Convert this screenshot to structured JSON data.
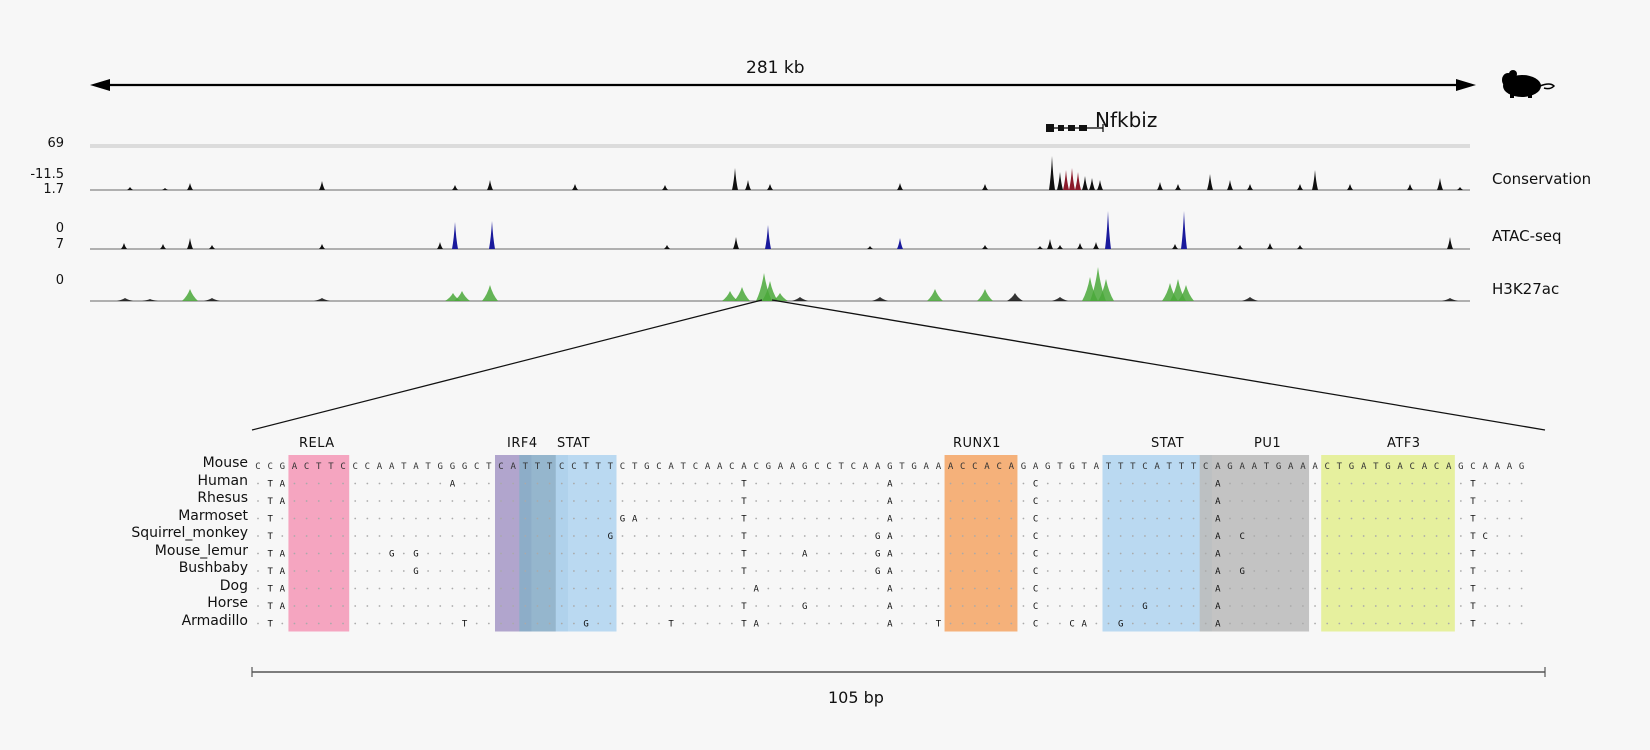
{
  "top_scale": {
    "label": "281 kb"
  },
  "species_icon": "mouse-icon",
  "gene": {
    "name": "Nfkbiz"
  },
  "tracks": [
    {
      "name": "Conservation",
      "ymax": "69",
      "ymin": "-11.5",
      "color": "#111111",
      "highlight": "#8b1a2a"
    },
    {
      "name": "ATAC-seq",
      "ymax": "1.7",
      "ymin": "0",
      "color": "#111111",
      "highlight": "#1a1a9c"
    },
    {
      "name": "H3K27ac",
      "ymax": "7",
      "ymin": "0",
      "color": "#333333",
      "highlight": "#3a9a2a"
    }
  ],
  "motifs": [
    {
      "name": "RELA",
      "color": "#f49bb9",
      "start": 3,
      "end": 7
    },
    {
      "name": "IRF4",
      "color": "#a99bc8",
      "start": 20,
      "end": 22
    },
    {
      "name": "IRF4/STAT",
      "color": "#8aaec8",
      "start": 22,
      "end": 25
    },
    {
      "name": "STAT",
      "color": "#b3d5ef",
      "start": 25,
      "end": 29
    },
    {
      "name": "RUNX1",
      "color": "#f4a96b",
      "start": 57,
      "end": 62
    },
    {
      "name": "STAT",
      "color": "#b3d5ef",
      "start": 70,
      "end": 78
    },
    {
      "name": "PU1",
      "color": "#bdbdbd",
      "start": 78,
      "end": 86
    },
    {
      "name": "ATF3",
      "color": "#e3ee93",
      "start": 88,
      "end": 98
    }
  ],
  "motif_labels": [
    {
      "text": "RELA"
    },
    {
      "text": "IRF4"
    },
    {
      "text": "STAT"
    },
    {
      "text": "RUNX1"
    },
    {
      "text": "STAT"
    },
    {
      "text": "PU1"
    },
    {
      "text": "ATF3"
    }
  ],
  "alignment": {
    "reference": "Mouse",
    "sequence": "CCGACTTCCCAATATGGGCTCATTTCCTTTCTGCATCAACACGAAGCCTCAAGTGAAACCACAGAGTGTATTTCATTTCAGAATGAAACTGATGACACAGCAAAG",
    "species": [
      {
        "name": "Human",
        "subs": {
          "1": "T",
          "2": "A",
          "16": "A",
          "40": "T",
          "52": "A",
          "64": "C",
          "79": "A",
          "100": "T"
        }
      },
      {
        "name": "Rhesus",
        "subs": {
          "1": "T",
          "2": "A",
          "40": "T",
          "52": "A",
          "64": "C",
          "79": "A",
          "100": "T"
        }
      },
      {
        "name": "Marmoset",
        "subs": {
          "1": "T",
          "30": "G",
          "31": "A",
          "40": "T",
          "52": "A",
          "64": "C",
          "79": "A",
          "100": "T"
        }
      },
      {
        "name": "Squirrel_monkey",
        "subs": {
          "1": "T",
          "29": "G",
          "40": "T",
          "51": "G",
          "52": "A",
          "64": "C",
          "79": "A",
          "81": "C",
          "100": "T",
          "101": "C"
        }
      },
      {
        "name": "Mouse_lemur",
        "subs": {
          "1": "T",
          "2": "A",
          "11": "G",
          "13": "G",
          "40": "T",
          "45": "A",
          "51": "G",
          "52": "A",
          "64": "C",
          "79": "A",
          "100": "T"
        }
      },
      {
        "name": "Bushbaby",
        "subs": {
          "1": "T",
          "2": "A",
          "13": "G",
          "40": "T",
          "51": "G",
          "52": "A",
          "64": "C",
          "79": "A",
          "81": "G",
          "100": "T"
        }
      },
      {
        "name": "Dog",
        "subs": {
          "1": "T",
          "2": "A",
          "41": "A",
          "52": "A",
          "64": "C",
          "79": "A",
          "100": "T"
        }
      },
      {
        "name": "Horse",
        "subs": {
          "1": "T",
          "2": "A",
          "40": "T",
          "45": "G",
          "52": "A",
          "64": "C",
          "73": "G",
          "79": "A",
          "100": "T"
        }
      },
      {
        "name": "Armadillo",
        "subs": {
          "1": "T",
          "17": "T",
          "27": "G",
          "34": "T",
          "40": "T",
          "41": "A",
          "52": "A",
          "56": "T",
          "64": "C",
          "67": "C",
          "68": "A",
          "71": "G",
          "79": "A",
          "100": "T"
        }
      }
    ]
  },
  "bottom_scale": {
    "label": "105 bp"
  }
}
